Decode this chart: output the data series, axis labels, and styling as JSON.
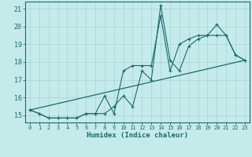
{
  "title": "",
  "xlabel": "Humidex (Indice chaleur)",
  "background_color": "#c5eaea",
  "grid_color": "#a8d4d4",
  "line_color": "#1a6b6b",
  "xlim": [
    -0.5,
    23.5
  ],
  "ylim": [
    14.6,
    21.4
  ],
  "yticks": [
    15,
    16,
    17,
    18,
    19,
    20,
    21
  ],
  "xticks": [
    0,
    1,
    2,
    3,
    4,
    5,
    6,
    7,
    8,
    9,
    10,
    11,
    12,
    13,
    14,
    15,
    16,
    17,
    18,
    19,
    20,
    21,
    22,
    23
  ],
  "series1_x": [
    0,
    1,
    2,
    3,
    4,
    5,
    6,
    7,
    8,
    9,
    10,
    11,
    12,
    13,
    14,
    15,
    16,
    17,
    18,
    19,
    20,
    21,
    22,
    23
  ],
  "series1_y": [
    15.3,
    15.1,
    14.85,
    14.85,
    14.85,
    14.85,
    15.1,
    15.1,
    15.1,
    15.5,
    16.1,
    15.5,
    17.5,
    17.0,
    21.2,
    18.1,
    17.5,
    18.9,
    19.3,
    19.5,
    20.1,
    19.5,
    18.4,
    18.1
  ],
  "series2_x": [
    0,
    1,
    2,
    3,
    4,
    5,
    6,
    7,
    8,
    9,
    10,
    11,
    12,
    13,
    14,
    15,
    16,
    17,
    18,
    19,
    20,
    21,
    22,
    23
  ],
  "series2_y": [
    15.3,
    15.1,
    14.85,
    14.85,
    14.85,
    14.85,
    15.1,
    15.1,
    16.1,
    15.1,
    17.5,
    17.8,
    17.8,
    17.8,
    20.6,
    17.5,
    19.0,
    19.3,
    19.5,
    19.5,
    19.5,
    19.5,
    18.4,
    18.1
  ],
  "series3_x": [
    0,
    23
  ],
  "series3_y": [
    15.3,
    18.1
  ]
}
